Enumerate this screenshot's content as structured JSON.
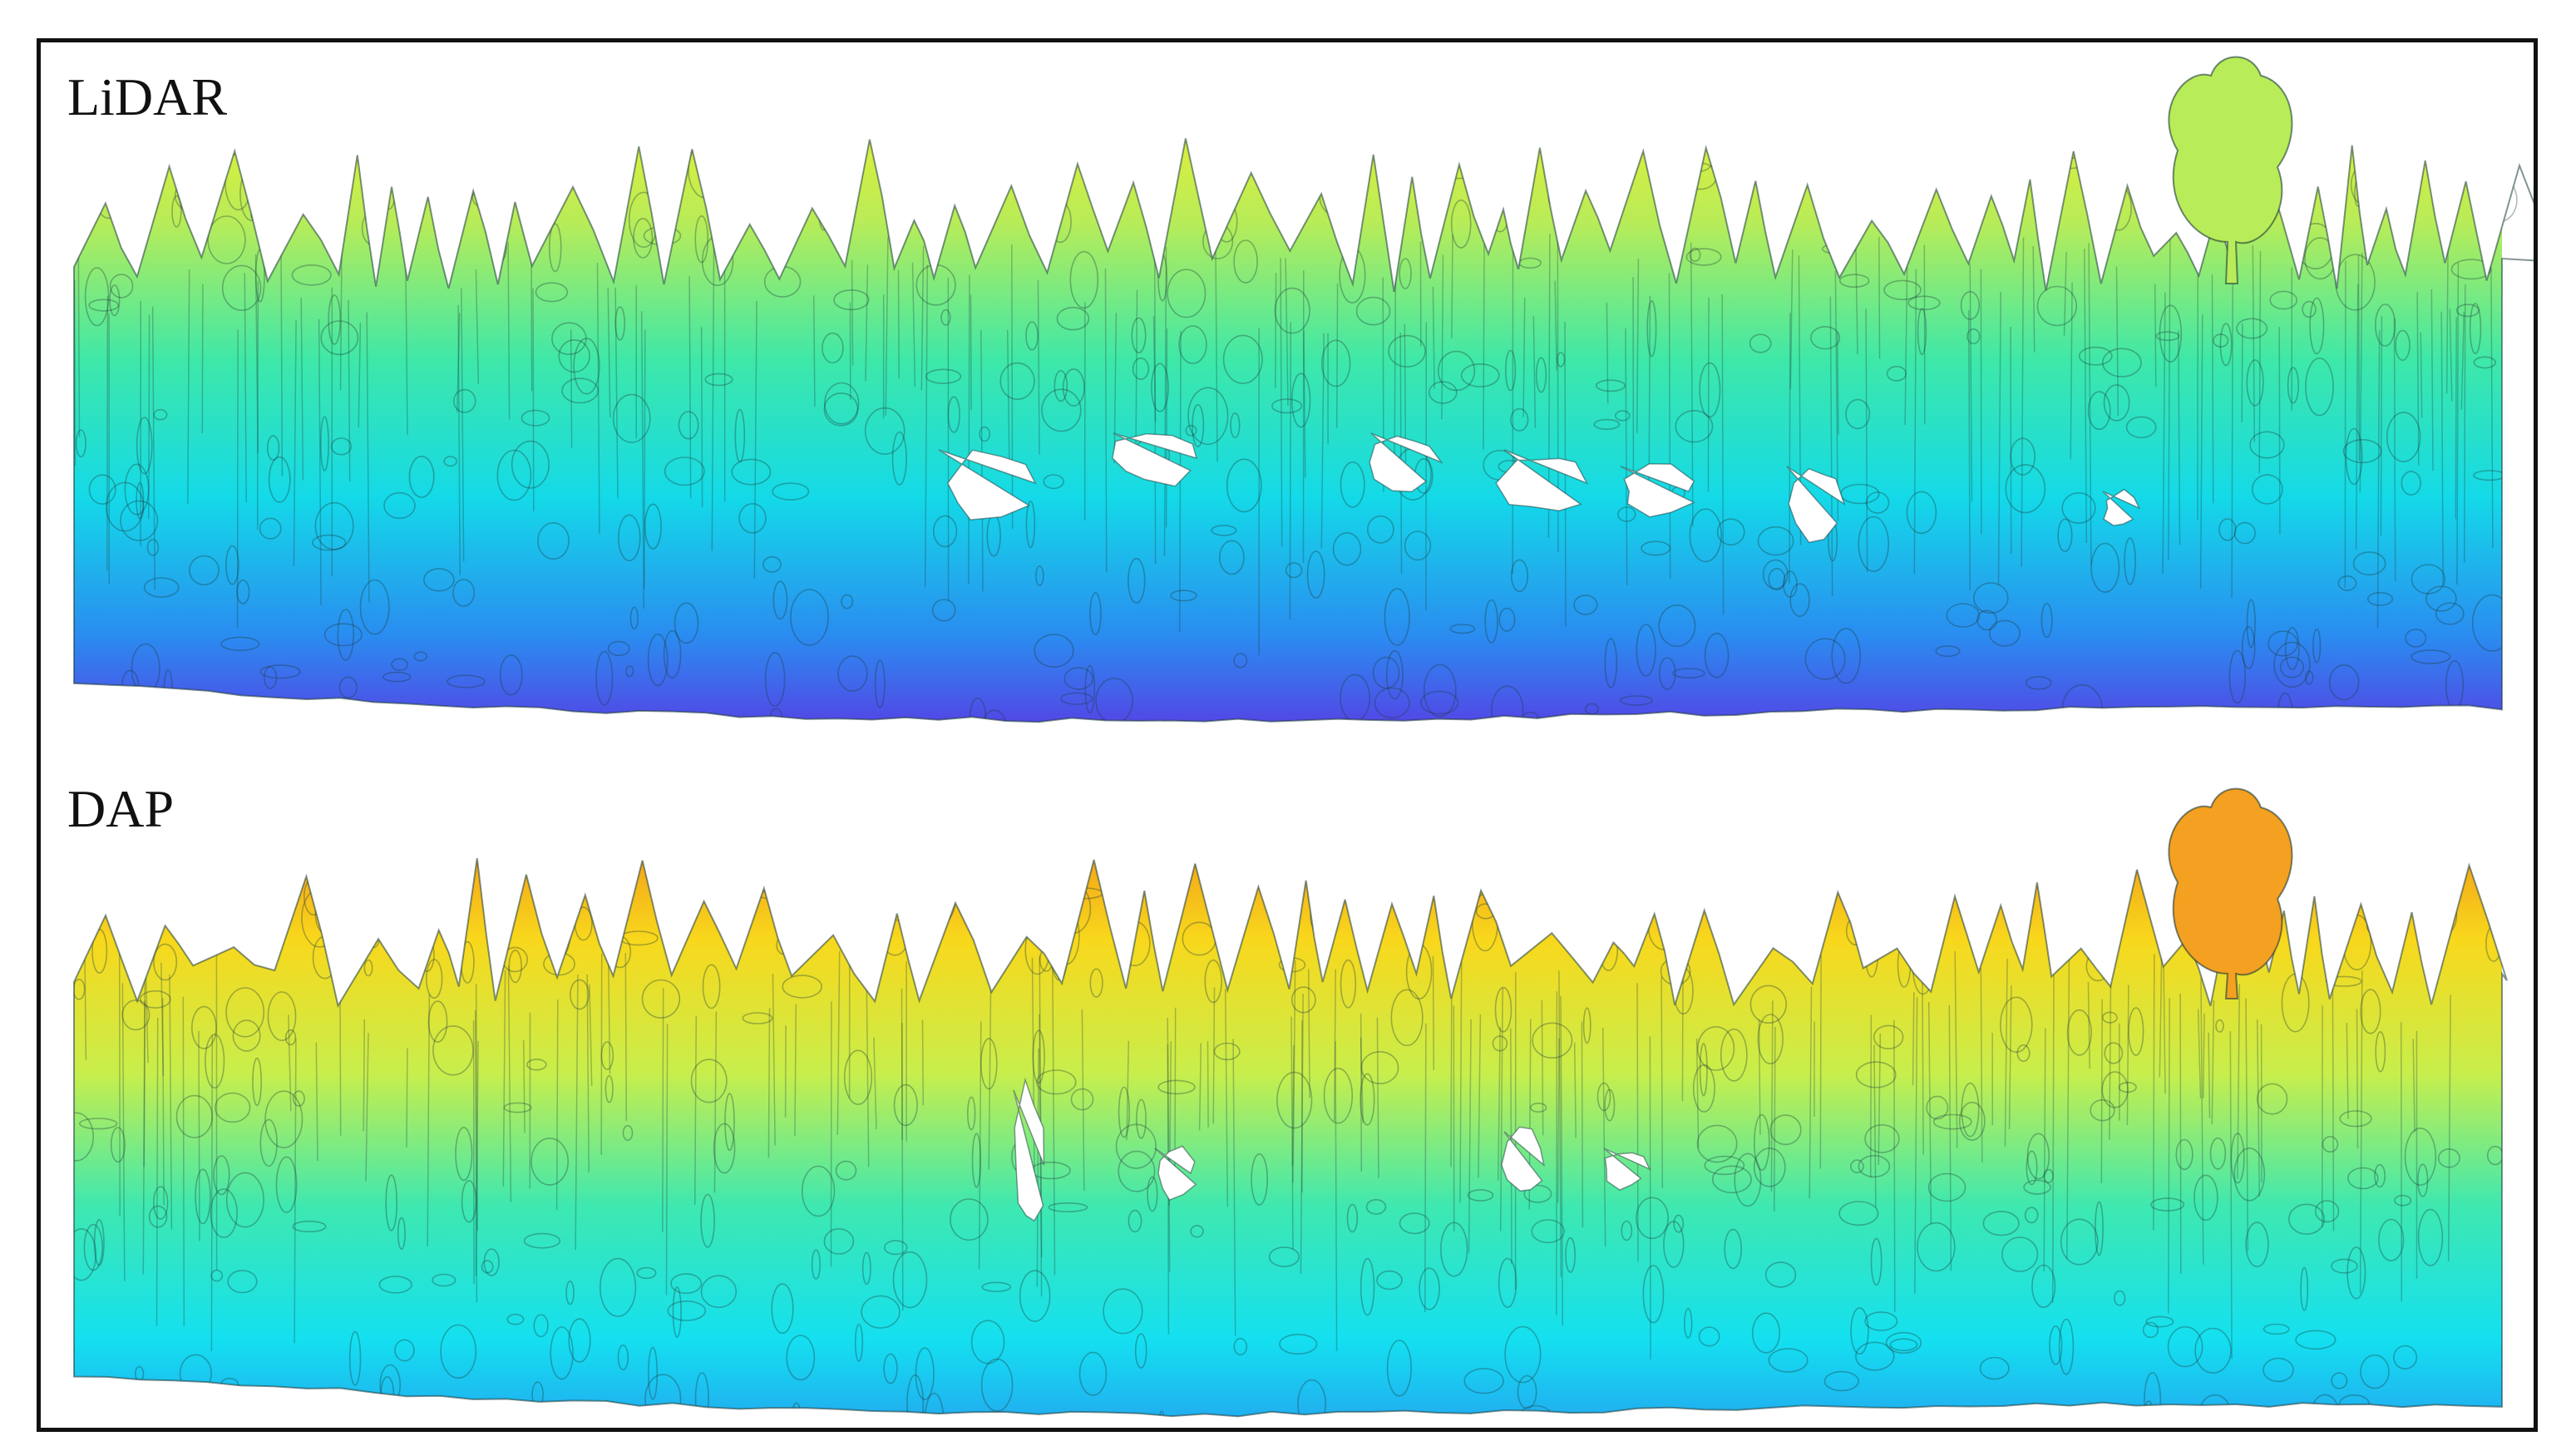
{
  "panels": [
    {
      "label": "LiDAR",
      "colormap": [
        "#6a1fe0",
        "#2a8cf0",
        "#14d9e8",
        "#3ee8a8",
        "#b8ec58",
        "#f4f02c"
      ],
      "gaps": true
    },
    {
      "label": "DAP",
      "colormap": [
        "#2a8cf0",
        "#14e0f0",
        "#3ee8b0",
        "#c8ee4c",
        "#f8d81c",
        "#f08818"
      ],
      "gaps": true
    }
  ],
  "colors": {
    "frame": "#111111",
    "background": "#ffffff",
    "outline": "#1c3a3a"
  }
}
